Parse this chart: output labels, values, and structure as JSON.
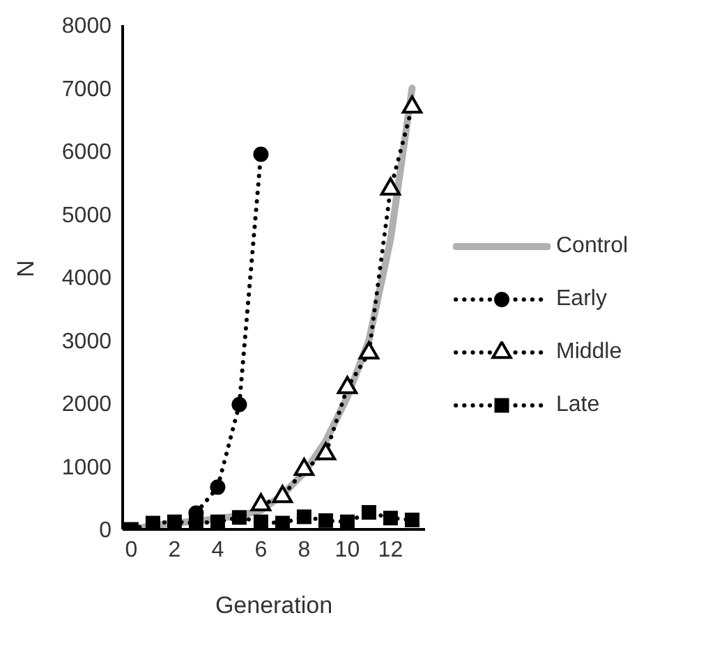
{
  "chart_data": {
    "type": "line",
    "xlabel": "Generation",
    "ylabel": "N",
    "xlim": [
      -0.4,
      13.6
    ],
    "xticks": [
      0,
      2,
      4,
      6,
      8,
      10,
      12
    ],
    "ylim": [
      0,
      8000
    ],
    "yticks": [
      0,
      1000,
      2000,
      3000,
      4000,
      5000,
      6000,
      7000,
      8000
    ],
    "grid": false,
    "legend": "right",
    "x": [
      0,
      1,
      2,
      3,
      4,
      5,
      6,
      7,
      8,
      9,
      10,
      11,
      12,
      13
    ],
    "series": [
      {
        "name": "Control",
        "color": "#b0b0b0",
        "marker": "none",
        "line_style": "solid",
        "values": [
          0,
          60,
          100,
          130,
          170,
          220,
          300,
          550,
          900,
          1400,
          2100,
          3000,
          4600,
          7000
        ]
      },
      {
        "name": "Early",
        "color": "#000000",
        "marker": "circle",
        "line_style": "dotted",
        "values": [
          null,
          null,
          null,
          260,
          670,
          1980,
          5950,
          null,
          null,
          null,
          null,
          null,
          null,
          null
        ]
      },
      {
        "name": "Middle",
        "color": "#000000",
        "marker": "triangle",
        "line_style": "dotted",
        "values": [
          null,
          null,
          null,
          null,
          null,
          null,
          390,
          520,
          950,
          1200,
          2250,
          2800,
          5400,
          6700
        ]
      },
      {
        "name": "Late",
        "color": "#000000",
        "marker": "square",
        "line_style": "dotted",
        "values": [
          0,
          100,
          120,
          100,
          120,
          190,
          120,
          100,
          200,
          140,
          120,
          270,
          180,
          150
        ]
      }
    ]
  }
}
